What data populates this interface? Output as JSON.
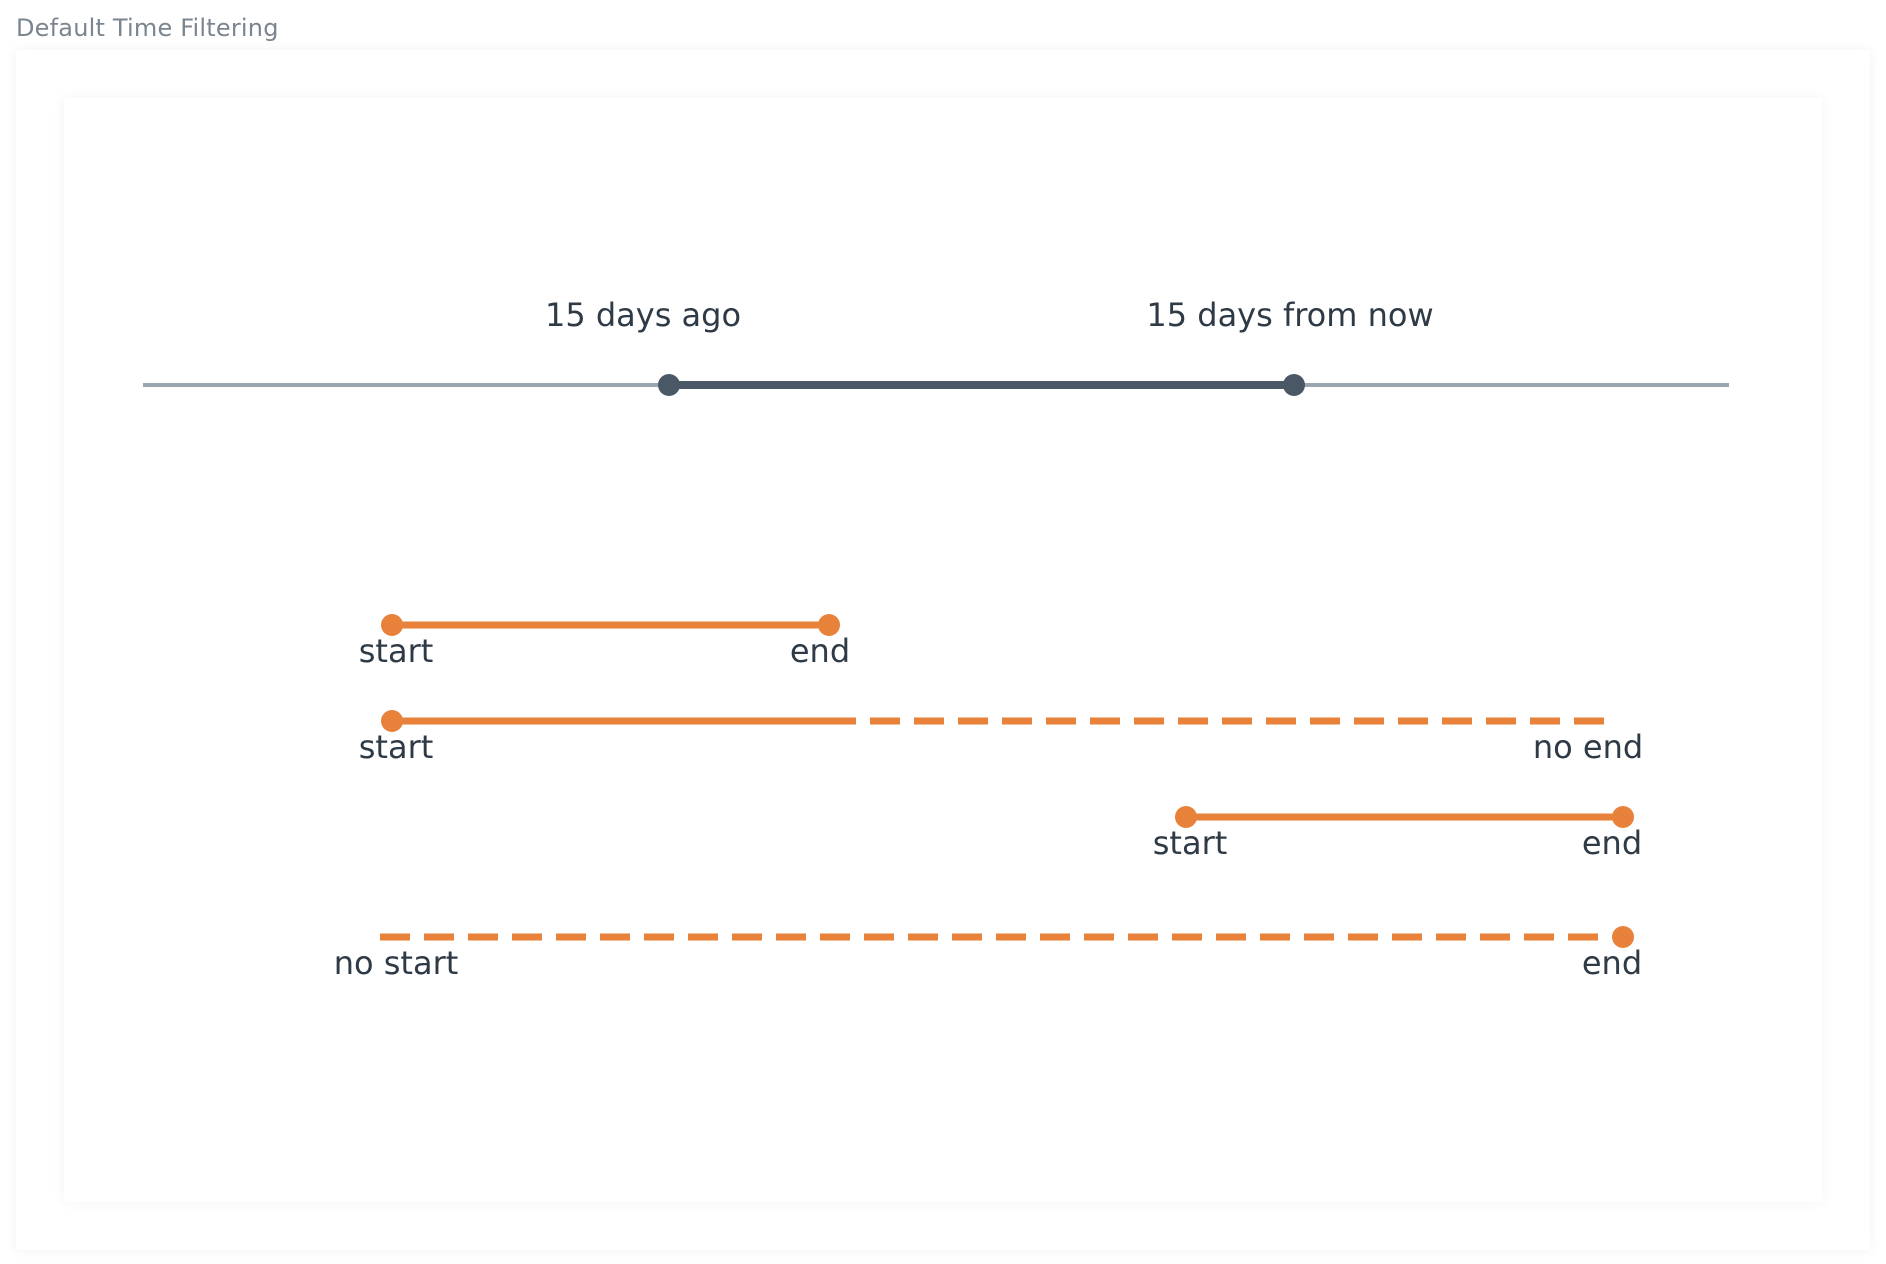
{
  "title": "Default Time Filtering",
  "colors": {
    "axis": "#9aa6b0",
    "window": "#4a5866",
    "range": "#e8823a",
    "text": "#2e3a46"
  },
  "window": {
    "start_label": "15 days ago",
    "end_label": "15 days from now"
  },
  "ranges": [
    {
      "start_label": "start",
      "end_label": "end",
      "start_style": "solid",
      "end_style": "solid"
    },
    {
      "start_label": "start",
      "end_label": "no end",
      "start_style": "solid",
      "end_style": "dashed"
    },
    {
      "start_label": "start",
      "end_label": "end",
      "start_style": "solid",
      "end_style": "solid"
    },
    {
      "start_label": "no start",
      "end_label": "end",
      "start_style": "dashed",
      "end_style": "solid"
    }
  ]
}
